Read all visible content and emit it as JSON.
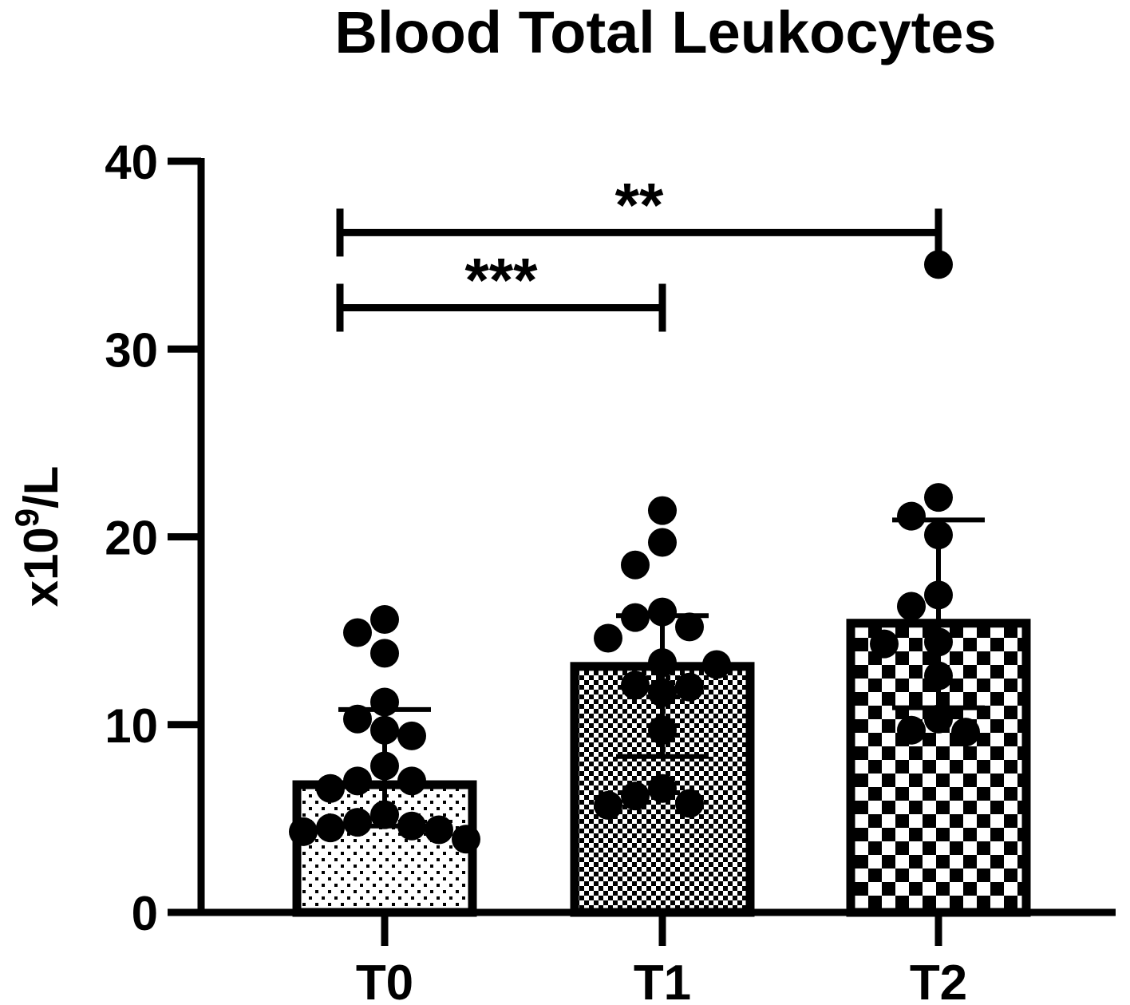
{
  "chart_data": {
    "type": "bar",
    "title": "Blood Total Leukocytes",
    "ylabel_main": "x10",
    "ylabel_sup": "9",
    "ylabel_tail": "/L",
    "ylim": [
      0,
      40
    ],
    "yticks": [
      0,
      10,
      20,
      30,
      40
    ],
    "categories": [
      "T0",
      "T1",
      "T2"
    ],
    "means": [
      6.8,
      13.1,
      15.4
    ],
    "sd_upper": [
      10.8,
      15.8,
      20.9
    ],
    "sd_lower": [
      4.6,
      8.3,
      10.9
    ],
    "points": [
      [
        15.6,
        14.9,
        13.8,
        11.2,
        10.3,
        9.7,
        9.4,
        7.8,
        7.0,
        7.0,
        6.6,
        5.2,
        4.8,
        4.6,
        4.5,
        4.4,
        4.3,
        3.9
      ],
      [
        21.4,
        19.7,
        18.5,
        16.0,
        15.7,
        15.2,
        14.6,
        13.3,
        13.2,
        12.1,
        12.0,
        11.7,
        9.7,
        6.6,
        6.2,
        5.8,
        5.7
      ],
      [
        34.5,
        22.1,
        21.1,
        20.1,
        16.9,
        16.3,
        14.4,
        14.3,
        12.6,
        10.3,
        9.7,
        9.6
      ]
    ],
    "significance": [
      {
        "from": "T0",
        "to": "T1",
        "label": "***",
        "y": 32.2
      },
      {
        "from": "T0",
        "to": "T2",
        "label": "**",
        "y": 36.2
      }
    ],
    "patterns": [
      "dots",
      "fine-checker",
      "coarse-checker"
    ],
    "colors": {
      "ink": "#000000",
      "fill": "#ffffff"
    },
    "grid": false,
    "legend": "none"
  }
}
